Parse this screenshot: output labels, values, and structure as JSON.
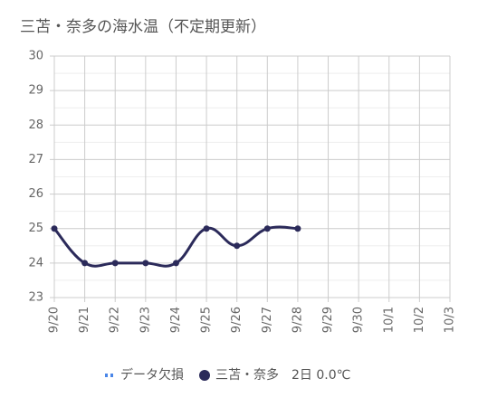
{
  "chart_data": {
    "type": "line",
    "title": "三苫・奈多の海水温（不定期更新）",
    "categories": [
      "9/20",
      "9/21",
      "9/22",
      "9/23",
      "9/24",
      "9/25",
      "9/26",
      "9/27",
      "9/28",
      "9/29",
      "9/30",
      "10/1",
      "10/2",
      "10/3"
    ],
    "series": [
      {
        "name": "データ欠損",
        "color": "#4a86e8",
        "dashed": true,
        "values": [
          null,
          null,
          null,
          null,
          null,
          null,
          null,
          null,
          null,
          null,
          null,
          null,
          null,
          null
        ]
      },
      {
        "name": "三苫・奈多　2日 0.0℃",
        "color": "#2b2a5a",
        "values": [
          25,
          24,
          24,
          24,
          24,
          25,
          24.5,
          25,
          25,
          null,
          null,
          null,
          null,
          null
        ]
      }
    ],
    "ylim": [
      23,
      30
    ],
    "yticks": [
      23,
      24,
      25,
      26,
      27,
      28,
      29,
      30
    ],
    "grid": true
  }
}
